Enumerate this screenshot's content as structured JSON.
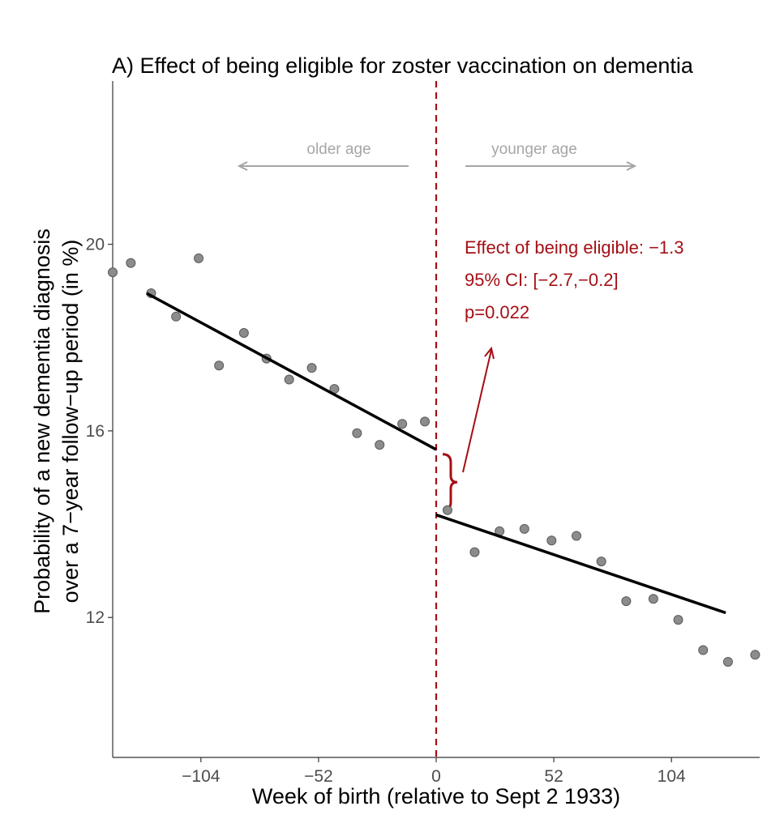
{
  "chart_data": {
    "type": "scatter",
    "title": "A) Effect of being eligible for zoster vaccination on dementia",
    "xlabel": "Week of birth (relative to Sept 2 1933)",
    "ylabel_line1": "Probability of a new dementia diagnosis",
    "ylabel_line2": "over a 7−year follow−up period (in %)",
    "xlim": [
      -143,
      143
    ],
    "ylim": [
      9,
      23.5
    ],
    "xticks": [
      {
        "value": -104,
        "label": "−104"
      },
      {
        "value": -52,
        "label": "−52"
      },
      {
        "value": 0,
        "label": "0"
      },
      {
        "value": 52,
        "label": "52"
      },
      {
        "value": 104,
        "label": "104"
      }
    ],
    "yticks": [
      {
        "value": 12,
        "label": "12"
      },
      {
        "value": 16,
        "label": "16"
      },
      {
        "value": 20,
        "label": "20"
      }
    ],
    "grid": false,
    "points": [
      {
        "x": -143,
        "y": 19.4
      },
      {
        "x": -135,
        "y": 19.6
      },
      {
        "x": -126,
        "y": 18.95
      },
      {
        "x": -115,
        "y": 18.45
      },
      {
        "x": -105,
        "y": 19.7
      },
      {
        "x": -96,
        "y": 17.4
      },
      {
        "x": -85,
        "y": 18.1
      },
      {
        "x": -75,
        "y": 17.55
      },
      {
        "x": -65,
        "y": 17.1
      },
      {
        "x": -55,
        "y": 17.35
      },
      {
        "x": -45,
        "y": 16.9
      },
      {
        "x": -35,
        "y": 15.95
      },
      {
        "x": -25,
        "y": 15.7
      },
      {
        "x": -15,
        "y": 16.15
      },
      {
        "x": -5,
        "y": 16.2
      },
      {
        "x": 5,
        "y": 14.3
      },
      {
        "x": 17,
        "y": 13.4
      },
      {
        "x": 28,
        "y": 13.85
      },
      {
        "x": 39,
        "y": 13.9
      },
      {
        "x": 51,
        "y": 13.65
      },
      {
        "x": 62,
        "y": 13.75
      },
      {
        "x": 73,
        "y": 13.2
      },
      {
        "x": 84,
        "y": 12.35
      },
      {
        "x": 96,
        "y": 12.4
      },
      {
        "x": 107,
        "y": 11.95
      },
      {
        "x": 118,
        "y": 11.3
      },
      {
        "x": 129,
        "y": 11.05
      },
      {
        "x": 141,
        "y": 11.2
      }
    ],
    "fit_lines": [
      {
        "segment": "before",
        "x": [
          -128,
          0
        ],
        "y": [
          18.95,
          15.6
        ]
      },
      {
        "segment": "after",
        "x": [
          0,
          128
        ],
        "y": [
          14.2,
          12.1
        ]
      }
    ],
    "cutoff_x": 0,
    "brace_y": [
      15.5,
      14.3
    ],
    "annotations": {
      "older": "older age",
      "younger": "younger age",
      "effect_line1": "Effect of being eligible: −1.3",
      "effect_line2": "95% CI: [−2.7,−0.2]",
      "effect_line3": "p=0.022"
    },
    "colors": {
      "points_fill": "#8c8c8c",
      "points_stroke": "#5a5a5a",
      "fit_line": "#000000",
      "cutoff_line": "#a50f15",
      "annotation": "#a50f15",
      "age_label": "#a6a6a6"
    }
  }
}
